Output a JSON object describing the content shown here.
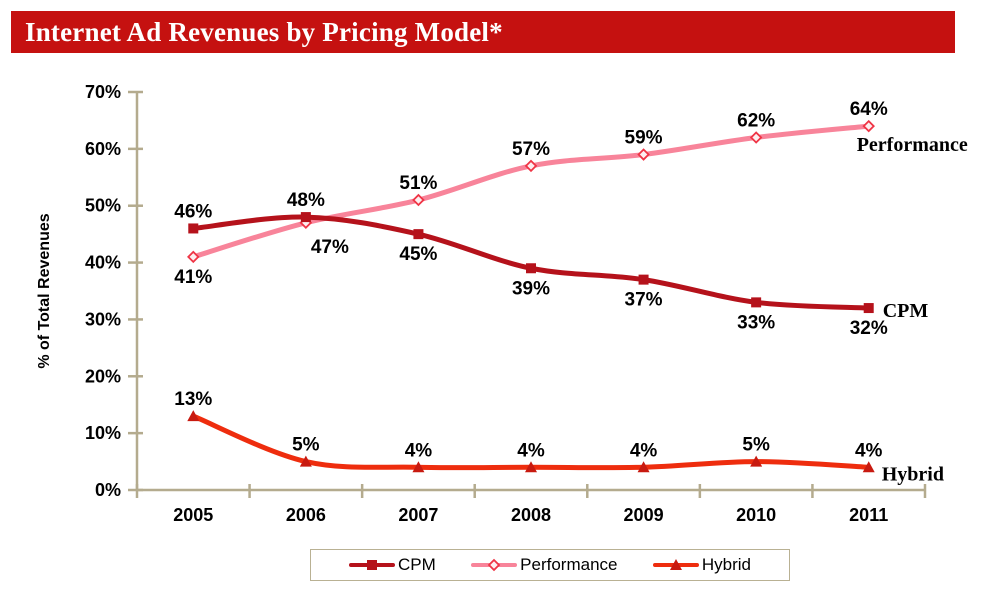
{
  "title": "Internet Ad Revenues by Pricing Model*",
  "colors": {
    "banner_background": "#c51110",
    "title_text": "#ffffff",
    "axis": "#b4ab8e",
    "text": "#000000",
    "legend_border": "#b9b193",
    "diamond_fill": "#fdeef0"
  },
  "chart_data": {
    "type": "line",
    "title": "Internet Ad Revenues by Pricing Model*",
    "ylabel": "% of Total Revenues",
    "categories": [
      "2005",
      "2006",
      "2007",
      "2008",
      "2009",
      "2010",
      "2011"
    ],
    "ylim": [
      0,
      70
    ],
    "ytick_labels": [
      "0%",
      "10%",
      "20%",
      "30%",
      "40%",
      "50%",
      "60%",
      "70%"
    ],
    "grid": false,
    "legend_position": "bottom",
    "line_style": "smooth",
    "series": [
      {
        "name": "CPM",
        "values": [
          46,
          48,
          45,
          39,
          37,
          33,
          32
        ],
        "point_labels": [
          "46%",
          "48%",
          "45%",
          "39%",
          "37%",
          "33%",
          "32%"
        ],
        "color": "#b5121b",
        "marker": "square",
        "marker_color": "#b5121b",
        "label_positions": [
          "above",
          "above",
          "below",
          "below",
          "below",
          "below",
          "below"
        ]
      },
      {
        "name": "Performance",
        "values": [
          41,
          47,
          51,
          57,
          59,
          62,
          64
        ],
        "point_labels": [
          "41%",
          "47%",
          "51%",
          "57%",
          "59%",
          "62%",
          "64%"
        ],
        "color": "#f8849a",
        "marker": "diamond",
        "marker_color": "#ef3445",
        "label_positions": [
          "below",
          "below-right",
          "above",
          "above",
          "above",
          "above",
          "above"
        ]
      },
      {
        "name": "Hybrid",
        "values": [
          13,
          5,
          4,
          4,
          4,
          5,
          4
        ],
        "point_labels": [
          "13%",
          "5%",
          "4%",
          "4%",
          "4%",
          "5%",
          "4%"
        ],
        "color": "#ee2d0e",
        "marker": "triangle",
        "marker_color": "#c81a10",
        "label_positions": [
          "above",
          "above",
          "above",
          "above",
          "above",
          "above",
          "above"
        ]
      }
    ]
  }
}
